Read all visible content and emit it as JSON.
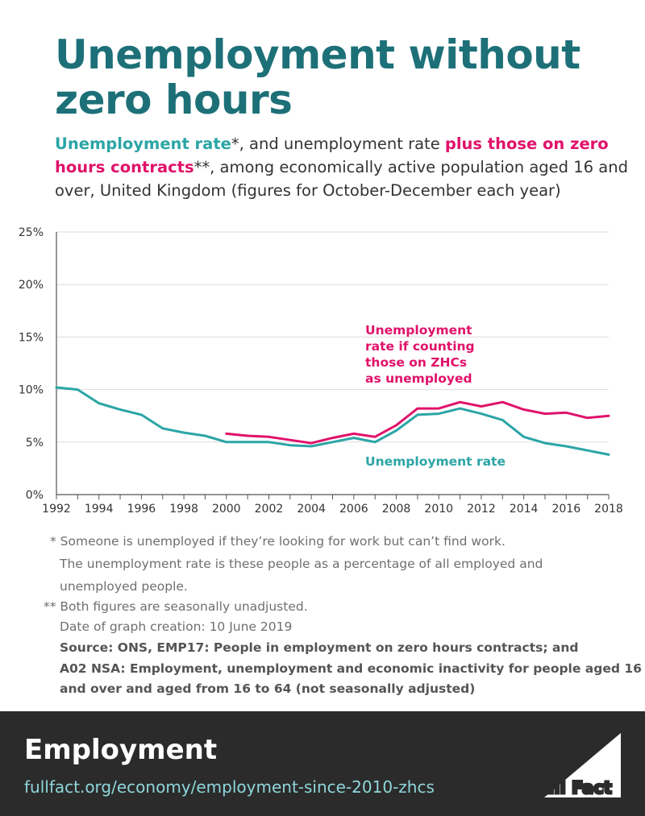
{
  "title_line1": "Unemployment without",
  "title_line2": "zero hours",
  "subtitle": {
    "part1": "Unemployment rate",
    "part2": "*, and unemployment rate ",
    "part3": "plus those on zero hours contracts",
    "part4": "**, among economically active population aged 16 and over, United Kingdom (figures for October-December each year)"
  },
  "chart_data": {
    "type": "line",
    "x": [
      1992,
      1993,
      1994,
      1995,
      1996,
      1997,
      1998,
      1999,
      2000,
      2001,
      2002,
      2003,
      2004,
      2005,
      2006,
      2007,
      2008,
      2009,
      2010,
      2011,
      2012,
      2013,
      2014,
      2015,
      2016,
      2017,
      2018
    ],
    "series": [
      {
        "name": "Unemployment rate",
        "color": "#2ba5a6",
        "values": [
          10.2,
          10.0,
          8.7,
          8.1,
          7.6,
          6.3,
          5.9,
          5.6,
          5.0,
          5.0,
          5.0,
          4.7,
          4.6,
          5.0,
          5.4,
          5.0,
          6.1,
          7.6,
          7.7,
          8.2,
          7.7,
          7.1,
          5.5,
          4.9,
          4.6,
          4.2,
          3.8
        ]
      },
      {
        "name": "Unemployment rate if counting those on ZHCs as unemployed",
        "color": "#e0126a",
        "values": [
          null,
          null,
          null,
          null,
          null,
          null,
          null,
          null,
          5.8,
          5.6,
          5.5,
          5.2,
          4.9,
          5.4,
          5.8,
          5.5,
          6.6,
          8.2,
          8.2,
          8.8,
          8.4,
          8.8,
          8.1,
          7.7,
          7.8,
          7.3,
          7.5
        ]
      }
    ],
    "xticks": [
      "1992",
      "1994",
      "1996",
      "1998",
      "2000",
      "2002",
      "2004",
      "2006",
      "2008",
      "2010",
      "2012",
      "2014",
      "2016",
      "2018"
    ],
    "yticks": [
      "0%",
      "5%",
      "10%",
      "15%",
      "20%",
      "25%"
    ],
    "ylim": [
      0,
      25
    ],
    "xlim": [
      1992,
      2018
    ],
    "annotations": {
      "pink_lines": [
        "Unemployment",
        "rate if counting",
        "those on ZHCs",
        "as unemployed"
      ],
      "teal": "Unemployment rate"
    },
    "grid": true
  },
  "notes": {
    "line1": "* Someone is unemployed if they’re looking for work but can’t find work.",
    "line2": "The unemployment rate is these people as a percentage of all employed and",
    "line3": "unemployed people.",
    "line4": "** Both figures are seasonally unadjusted.",
    "line5": "Date of graph creation: 10 June 2019",
    "source1": "Source: ONS, EMP17: People in employment on zero hours contracts; and",
    "source2": "A02 NSA: Employment, unemployment and economic inactivity for people aged 16",
    "source3": "and over and aged from 16 to 64 (not seasonally adjusted)"
  },
  "footer": {
    "category": "Employment",
    "url": "fullfact.org/economy/employment-since-2010-zhcs",
    "logo_text": "Full Fact"
  }
}
